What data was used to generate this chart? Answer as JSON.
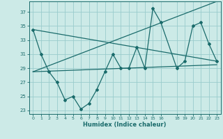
{
  "xlabel": "Humidex (Indice chaleur)",
  "bg_color": "#cceae7",
  "grid_color": "#99cccc",
  "line_color": "#1a6b6b",
  "ylim": [
    22.5,
    38.5
  ],
  "xlim": [
    -0.5,
    23.5
  ],
  "yticks": [
    23,
    25,
    27,
    29,
    31,
    33,
    35,
    37
  ],
  "xticks": [
    0,
    1,
    2,
    3,
    4,
    5,
    6,
    7,
    8,
    9,
    10,
    11,
    12,
    13,
    14,
    15,
    16,
    18,
    19,
    20,
    21,
    22,
    23
  ],
  "xtick_labels": [
    "0",
    "1",
    "2",
    "3",
    "4",
    "5",
    "6",
    "7",
    "8",
    "9",
    "10",
    "11",
    "12",
    "13",
    "14",
    "15",
    "16",
    "18",
    "19",
    "20",
    "21",
    "22",
    "23"
  ],
  "series1_x": [
    0,
    1,
    2,
    3,
    4,
    5,
    6,
    7,
    8,
    9,
    10,
    11,
    12,
    13,
    14,
    15,
    16,
    18,
    19,
    20,
    21,
    22,
    23
  ],
  "series1_y": [
    34.5,
    31.0,
    28.5,
    27.0,
    24.5,
    25.0,
    23.2,
    24.0,
    26.0,
    28.5,
    31.0,
    29.0,
    29.0,
    32.0,
    29.0,
    37.5,
    35.5,
    29.0,
    30.0,
    35.0,
    35.5,
    32.5,
    30.0
  ],
  "series2_x": [
    0,
    23
  ],
  "series2_y": [
    34.5,
    30.0
  ],
  "series3_x": [
    0,
    23
  ],
  "series3_y": [
    28.5,
    29.5
  ],
  "series4_x": [
    0,
    23
  ],
  "series4_y": [
    28.5,
    38.5
  ]
}
